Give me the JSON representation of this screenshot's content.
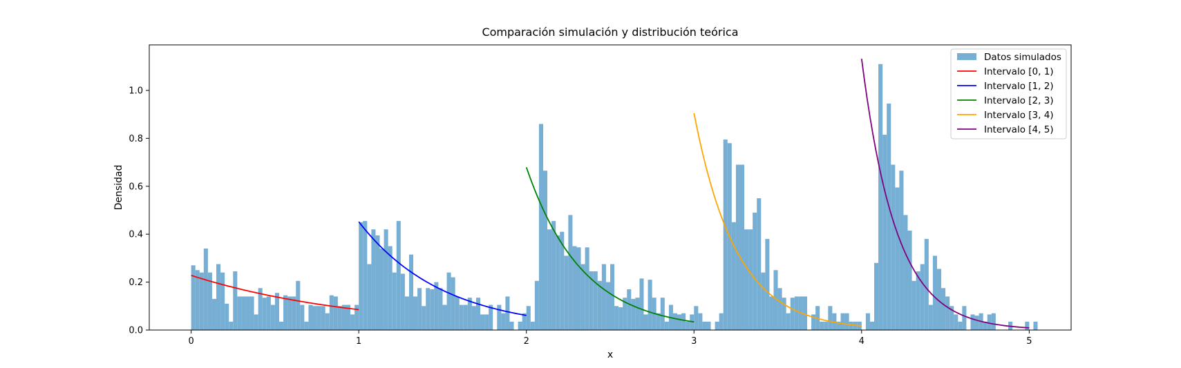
{
  "chart_data": {
    "type": "bar",
    "title": "Comparación simulación y distribución teórica",
    "xlabel": "x",
    "ylabel": "Densidad",
    "xlim": [
      -0.25,
      5.25
    ],
    "ylim": [
      0,
      1.19
    ],
    "xticks": [
      "0",
      "1",
      "2",
      "3",
      "4",
      "5"
    ],
    "xtick_values": [
      0,
      1,
      2,
      3,
      4,
      5
    ],
    "yticks": [
      "0.0",
      "0.2",
      "0.4",
      "0.6",
      "0.8",
      "1.0"
    ],
    "ytick_values": [
      0.0,
      0.2,
      0.4,
      0.6,
      0.8,
      1.0
    ],
    "grid": false,
    "legend_position": "top-right",
    "histogram": {
      "name": "Datos simulados",
      "color": "#77aed4",
      "bin_start": 0,
      "bin_width": 0.025,
      "values": [
        0.27,
        0.25,
        0.24,
        0.34,
        0.24,
        0.13,
        0.275,
        0.24,
        0.11,
        0.035,
        0.245,
        0.14,
        0.14,
        0.14,
        0.14,
        0.065,
        0.175,
        0.135,
        0.14,
        0.105,
        0.155,
        0.035,
        0.145,
        0.14,
        0.14,
        0.205,
        0.105,
        0.035,
        0.105,
        0.1,
        0.1,
        0.1,
        0.07,
        0.145,
        0.14,
        0.1,
        0.105,
        0.105,
        0.065,
        0.105,
        0.45,
        0.455,
        0.275,
        0.42,
        0.395,
        0.34,
        0.42,
        0.35,
        0.24,
        0.455,
        0.235,
        0.14,
        0.315,
        0.14,
        0.175,
        0.1,
        0.175,
        0.17,
        0.2,
        0.175,
        0.105,
        0.24,
        0.22,
        0.14,
        0.105,
        0.105,
        0.135,
        0.1,
        0.135,
        0.065,
        0.065,
        0.105,
        0.0,
        0.105,
        0.07,
        0.14,
        0.035,
        0.0,
        0.035,
        0.07,
        0.1,
        0.035,
        0.205,
        0.86,
        0.665,
        0.42,
        0.455,
        0.395,
        0.41,
        0.31,
        0.48,
        0.35,
        0.345,
        0.275,
        0.345,
        0.245,
        0.245,
        0.205,
        0.275,
        0.2,
        0.275,
        0.1,
        0.095,
        0.135,
        0.17,
        0.13,
        0.135,
        0.215,
        0.065,
        0.21,
        0.135,
        0.07,
        0.135,
        0.035,
        0.105,
        0.07,
        0.065,
        0.07,
        0.035,
        0.065,
        0.1,
        0.07,
        0.035,
        0.035,
        0.0,
        0.035,
        0.07,
        0.795,
        0.78,
        0.45,
        0.69,
        0.69,
        0.42,
        0.42,
        0.49,
        0.55,
        0.24,
        0.38,
        0.14,
        0.25,
        0.175,
        0.135,
        0.07,
        0.135,
        0.14,
        0.14,
        0.14,
        0.0,
        0.065,
        0.1,
        0.035,
        0.035,
        0.1,
        0.07,
        0.035,
        0.07,
        0.07,
        0.035,
        0.035,
        0.035,
        0.0,
        0.07,
        0.035,
        0.28,
        1.11,
        0.815,
        0.945,
        0.69,
        0.595,
        0.665,
        0.48,
        0.415,
        0.205,
        0.245,
        0.275,
        0.38,
        0.105,
        0.31,
        0.255,
        0.175,
        0.14,
        0.1,
        0.065,
        0.035,
        0.1,
        0.0,
        0.065,
        0.06,
        0.07,
        0.035,
        0.065,
        0.07,
        0.0,
        0.0,
        0.0,
        0.035,
        0.0,
        0.0,
        0.0,
        0.035,
        0.0,
        0.035,
        0.0
      ]
    },
    "series": [
      {
        "name": "Intervalo [0, 1)",
        "color": "#ff0000",
        "x_start": 0,
        "x_end": 1,
        "y_start": 0.228,
        "y_end": 0.085
      },
      {
        "name": "Intervalo [1, 2)",
        "color": "#0000ff",
        "x_start": 1,
        "x_end": 2,
        "y_start": 0.452,
        "y_end": 0.061
      },
      {
        "name": "Intervalo [2, 3)",
        "color": "#008000",
        "x_start": 2,
        "x_end": 3,
        "y_start": 0.679,
        "y_end": 0.034
      },
      {
        "name": "Intervalo [3, 4)",
        "color": "#ffa500",
        "x_start": 3,
        "x_end": 4,
        "y_start": 0.905,
        "y_end": 0.017
      },
      {
        "name": "Intervalo [4, 5)",
        "color": "#800080",
        "x_start": 4,
        "x_end": 5,
        "y_start": 1.132,
        "y_end": 0.009
      }
    ]
  }
}
